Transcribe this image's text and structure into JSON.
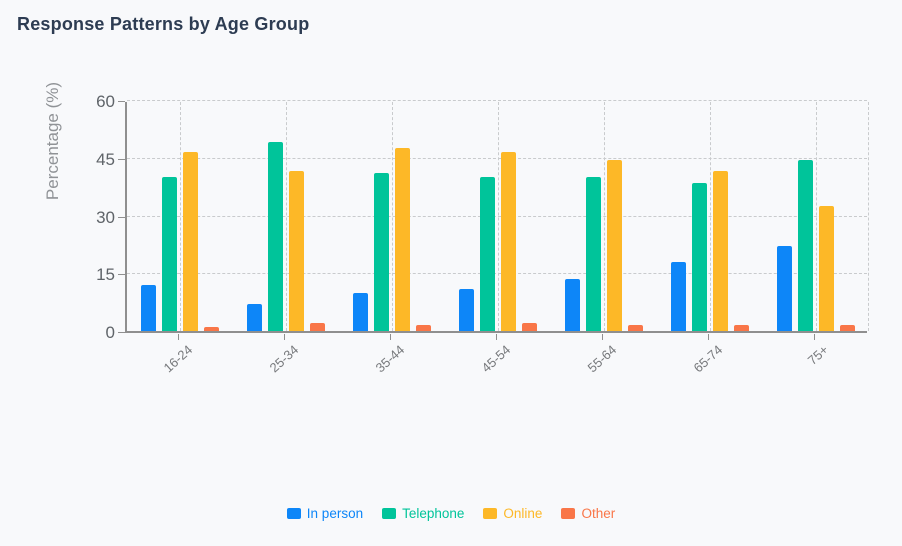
{
  "title": "Response Patterns by Age Group",
  "chart_data": {
    "type": "bar",
    "title": "Response Patterns by Age Group",
    "xlabel": "",
    "ylabel": "Percentage (%)",
    "ylim": [
      0,
      60
    ],
    "yticks": [
      0,
      15,
      30,
      45,
      60
    ],
    "grid": true,
    "legend_position": "bottom",
    "categories": [
      "16-24",
      "25-34",
      "35-44",
      "45-54",
      "55-64",
      "65-74",
      "75+"
    ],
    "series": [
      {
        "name": "In person",
        "color": "#0d86f8",
        "values": [
          12,
          7,
          10,
          11,
          13.5,
          18,
          22
        ]
      },
      {
        "name": "Telephone",
        "color": "#00c49a",
        "values": [
          40,
          49,
          41,
          40,
          40,
          38.5,
          44.5
        ]
      },
      {
        "name": "Online",
        "color": "#fdb827",
        "values": [
          46.5,
          41.5,
          47.5,
          46.5,
          44.5,
          41.5,
          32.5
        ]
      },
      {
        "name": "Other",
        "color": "#f97648",
        "values": [
          1,
          2,
          1.5,
          2,
          1.5,
          1.5,
          1.5
        ]
      }
    ]
  },
  "colors": {
    "background": "#f8f9fb",
    "title": "#2d3c52",
    "axis": "#8f8f8f",
    "grid": "#c9cbcd",
    "y_tick_label": "#5f6469",
    "x_tick_label": "#77797c",
    "axis_title": "#8f9296"
  }
}
